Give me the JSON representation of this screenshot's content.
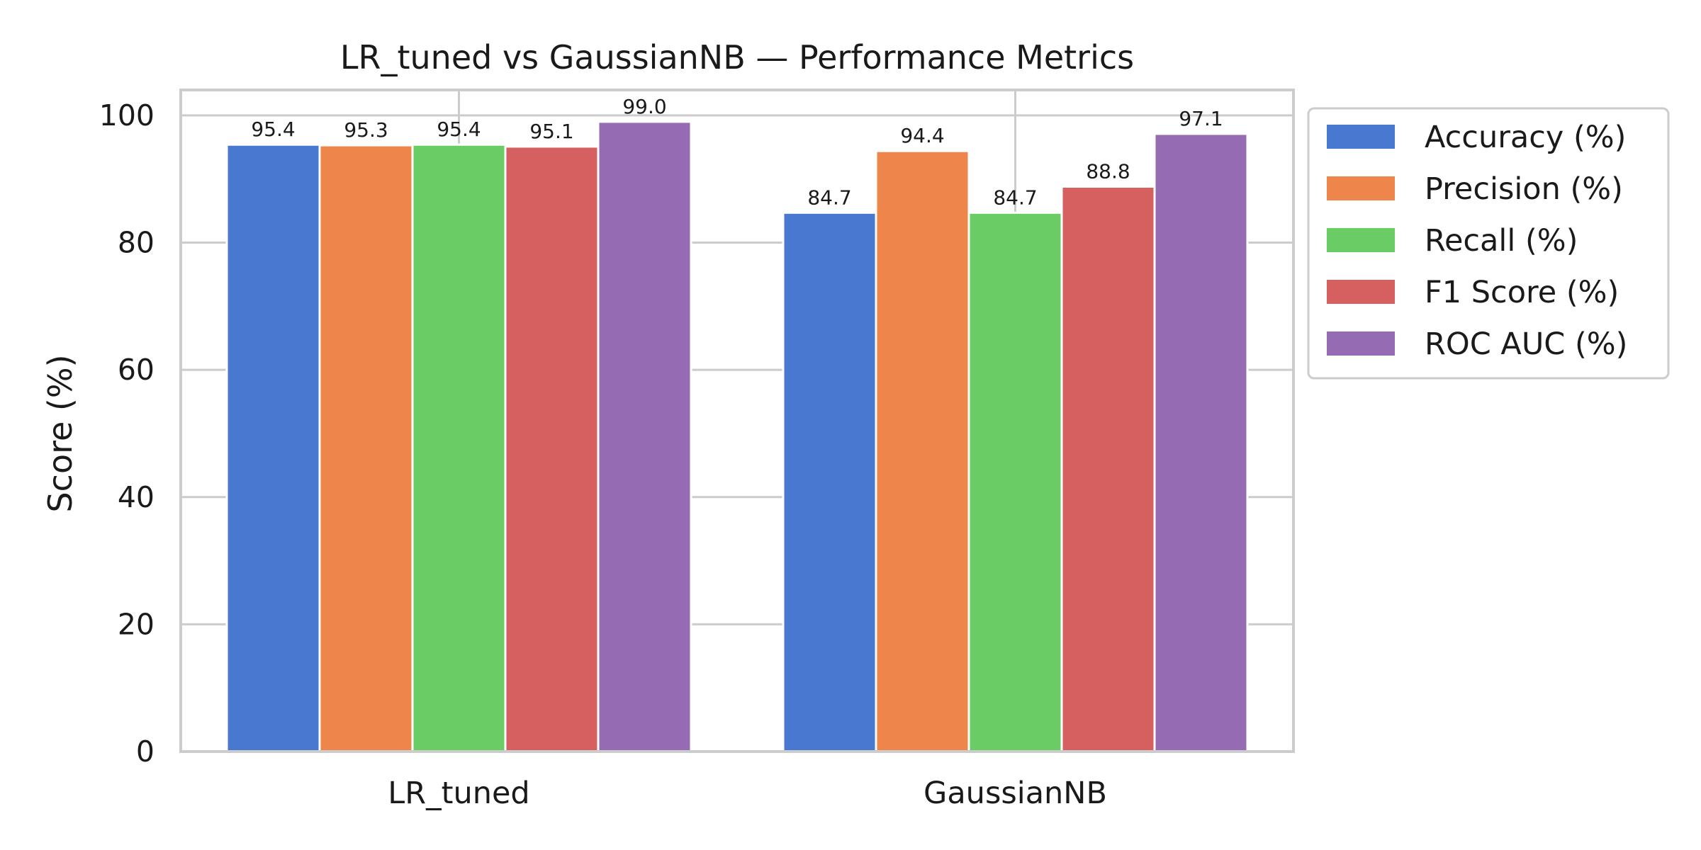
{
  "chart_data": {
    "type": "bar",
    "title": "LR_tuned vs GaussianNB — Performance Metrics",
    "xlabel": "",
    "ylabel": "Score (%)",
    "ylim": [
      0,
      104
    ],
    "yticks": [
      0,
      20,
      40,
      60,
      80,
      100
    ],
    "categories": [
      "LR_tuned",
      "GaussianNB"
    ],
    "grid": true,
    "legend_position": "outside-upper-right",
    "series": [
      {
        "name": "Accuracy (%)",
        "color": "#4878d0",
        "values": [
          95.4,
          84.7
        ],
        "labels": [
          "95.4",
          "84.7"
        ]
      },
      {
        "name": "Precision (%)",
        "color": "#ee854a",
        "values": [
          95.3,
          94.4
        ],
        "labels": [
          "95.3",
          "94.4"
        ]
      },
      {
        "name": "Recall (%)",
        "color": "#6acc64",
        "values": [
          95.4,
          84.7
        ],
        "labels": [
          "95.4",
          "84.7"
        ]
      },
      {
        "name": "F1 Score (%)",
        "color": "#d65f5f",
        "values": [
          95.1,
          88.8
        ],
        "labels": [
          "95.1",
          "88.8"
        ]
      },
      {
        "name": "ROC AUC (%)",
        "color": "#956cb4",
        "values": [
          99.0,
          97.1
        ],
        "labels": [
          "99.0",
          "97.1"
        ]
      }
    ]
  }
}
